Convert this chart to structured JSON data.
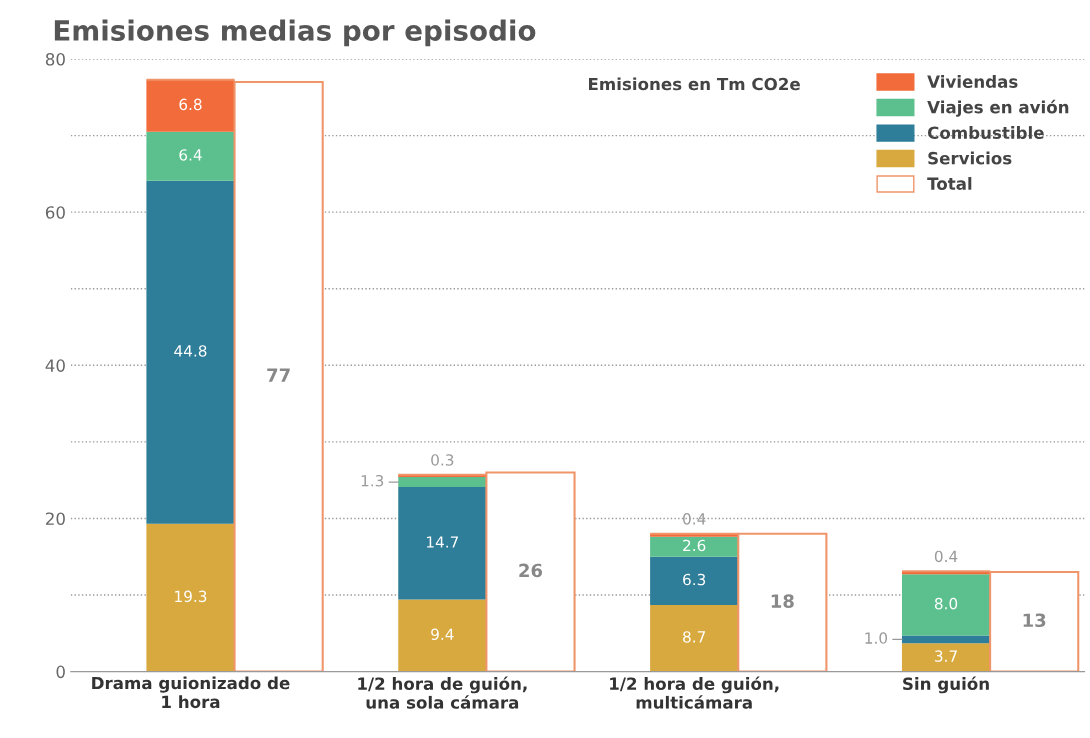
{
  "chart_data": {
    "type": "bar",
    "title": "Emisiones medias por episodio",
    "legend_title": "Emisiones en Tm CO2e",
    "categories": [
      "Drama guionizado de\n1 hora",
      null,
      "1/2 hora de guión,\nuna sola cámara",
      null,
      "1/2 hora de guión,\nmulticámara",
      null,
      "Sin guión",
      null
    ],
    "stacked": true,
    "series": [
      {
        "name": "Servicios",
        "color": "#d8a93e",
        "values": [
          19.3,
          null,
          9.4,
          null,
          8.7,
          null,
          3.7,
          null
        ]
      },
      {
        "name": "Combustible",
        "color": "#2e7d99",
        "values": [
          44.8,
          null,
          14.7,
          null,
          6.3,
          null,
          1.0,
          null
        ],
        "value_labels": [
          "44.8",
          null,
          "14.7",
          null,
          "6.3",
          null,
          "1.0",
          null
        ]
      },
      {
        "name": "Viajes en avión",
        "color": "#5cc08e",
        "values": [
          6.4,
          null,
          1.3,
          null,
          2.6,
          null,
          8.0,
          null
        ],
        "value_labels": [
          "6.4",
          null,
          "1.3",
          null,
          "2.6",
          null,
          "8.0",
          null
        ]
      },
      {
        "name": "Viviendas",
        "color": "#f26b3a",
        "values": [
          6.8,
          null,
          0.3,
          null,
          0.4,
          null,
          0.4,
          null
        ]
      },
      {
        "name": "Total",
        "color": "#ffffff",
        "values": [
          null,
          77,
          null,
          26,
          null,
          18,
          null,
          13
        ]
      }
    ],
    "ylim": [
      0,
      80
    ],
    "yticks": [
      0,
      {
        "value": 10,
        "label": null
      },
      20,
      {
        "value": 30,
        "label": null
      },
      40,
      {
        "value": 50,
        "label": null
      },
      60,
      {
        "value": 70,
        "label": null
      },
      80
    ],
    "grid": "y",
    "legend": "top right",
    "data_labels": true
  }
}
